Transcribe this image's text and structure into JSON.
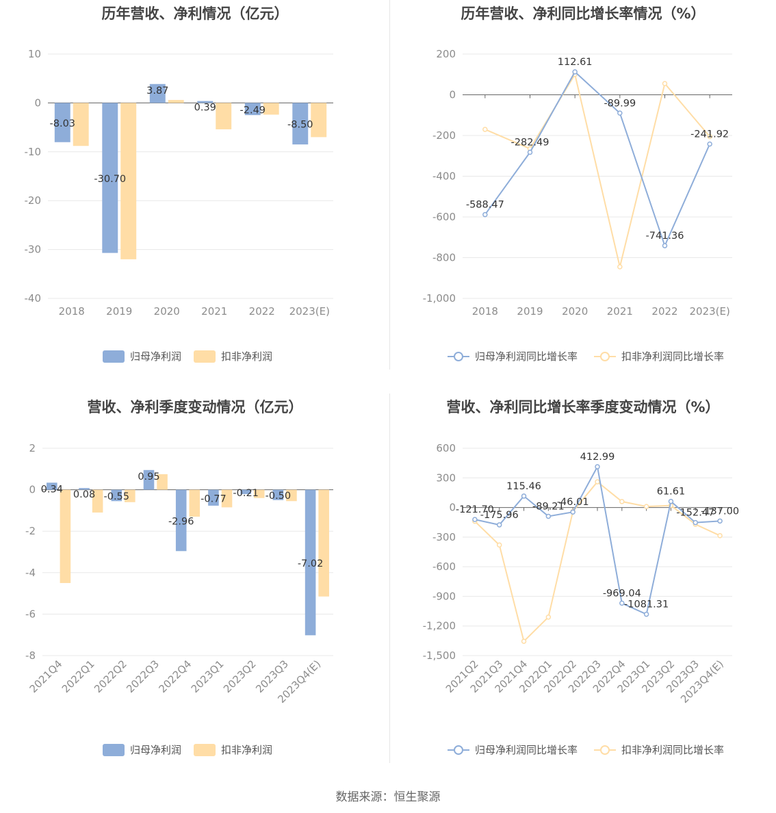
{
  "colors": {
    "primary": "#8eadd9",
    "secondary": "#ffdda6",
    "grid": "#e8e8e8",
    "axis": "#666666"
  },
  "source": "数据来源：恒生聚源",
  "charts": [
    {
      "id": "c1",
      "type": "bar",
      "title": "历年营收、净利情况（亿元）",
      "categories": [
        "2018",
        "2019",
        "2020",
        "2021",
        "2022",
        "2023(E)"
      ],
      "series": [
        {
          "name": "归母净利润",
          "values": [
            -8.03,
            -30.7,
            3.87,
            0.39,
            -2.49,
            -8.5
          ],
          "labels": [
            "-8.03",
            "-30.70",
            "3.87",
            "0.39",
            "-2.49",
            "-8.50"
          ]
        },
        {
          "name": "扣非净利润",
          "values": [
            -8.8,
            -32.0,
            0.6,
            -5.4,
            -2.4,
            -7.0
          ]
        }
      ],
      "yticks": [
        10,
        0,
        -10,
        -20,
        -30,
        -40
      ],
      "ytick_labels": [
        "10",
        "0",
        "-10",
        "-20",
        "-30",
        "-40"
      ],
      "ylim": [
        -40,
        10
      ]
    },
    {
      "id": "c2",
      "type": "line",
      "title": "历年营收、净利同比增长率情况（%）",
      "categories": [
        "2018",
        "2019",
        "2020",
        "2021",
        "2022",
        "2023(E)"
      ],
      "series": [
        {
          "name": "归母净利润同比增长率",
          "values": [
            -588.47,
            -282.49,
            112.61,
            -89.99,
            -741.36,
            -241.92
          ],
          "labels": [
            "-588.47",
            "-282.49",
            "112.61",
            "-89.99",
            "-741.36",
            "-241.92"
          ]
        },
        {
          "name": "扣非净利润同比增长率",
          "values": [
            -170,
            -265,
            100,
            -845,
            55,
            -205
          ]
        }
      ],
      "yticks": [
        200,
        0,
        -200,
        -400,
        -600,
        -800,
        -1000
      ],
      "ytick_labels": [
        "200",
        "0",
        "-200",
        "-400",
        "-600",
        "-800",
        "-1,000"
      ],
      "ylim": [
        -1000,
        200
      ]
    },
    {
      "id": "c3",
      "type": "bar",
      "title": "营收、净利季度变动情况（亿元）",
      "categories": [
        "2021Q4",
        "2022Q1",
        "2022Q2",
        "2022Q3",
        "2022Q4",
        "2023Q1",
        "2023Q2",
        "2023Q3",
        "2023Q4(E)"
      ],
      "series": [
        {
          "name": "归母净利润",
          "values": [
            0.34,
            0.08,
            -0.55,
            0.95,
            -2.96,
            -0.77,
            -0.21,
            -0.5,
            -7.02
          ],
          "labels": [
            "0.34",
            "0.08",
            "-0.55",
            "0.95",
            "-2.96",
            "-0.77",
            "-0.21",
            "-0.50",
            "-7.02"
          ]
        },
        {
          "name": "扣非净利润",
          "values": [
            -4.5,
            -1.1,
            -0.6,
            0.75,
            -1.3,
            -0.85,
            -0.4,
            -0.55,
            -5.15
          ]
        }
      ],
      "yticks": [
        2,
        0,
        -2,
        -4,
        -6,
        -8
      ],
      "ytick_labels": [
        "2",
        "0",
        "-2",
        "-4",
        "-6",
        "-8"
      ],
      "ylim": [
        -8,
        2
      ]
    },
    {
      "id": "c4",
      "type": "line",
      "title": "营收、净利同比增长率季度变动情况（%）",
      "categories": [
        "2021Q2",
        "2021Q3",
        "2021Q4",
        "2022Q1",
        "2022Q2",
        "2022Q3",
        "2022Q4",
        "2023Q1",
        "2023Q2",
        "2023Q3",
        "2023Q4(E)"
      ],
      "series": [
        {
          "name": "归母净利润同比增长率",
          "values": [
            -121.7,
            -175.96,
            115.46,
            -89.21,
            -46.01,
            412.99,
            -969.04,
            -1081.31,
            61.61,
            -152.47,
            -137.0
          ],
          "labels": [
            "-121.70",
            "-175.96",
            "115.46",
            "-89.21",
            "-46.01",
            "412.99",
            "-969.04",
            "-1081.31",
            "61.61",
            "-152.47",
            "-137.00"
          ]
        },
        {
          "name": "扣非净利润同比增长率",
          "values": [
            -140,
            -380,
            -1355,
            -1110,
            -40,
            260,
            60,
            10,
            20,
            -170,
            -285
          ]
        }
      ],
      "yticks": [
        600,
        300,
        0,
        -300,
        -600,
        -900,
        -1200,
        -1500
      ],
      "ytick_labels": [
        "600",
        "300",
        "0",
        "-300",
        "-600",
        "-900",
        "-1,200",
        "-1,500"
      ],
      "ylim": [
        -1500,
        600
      ]
    }
  ]
}
